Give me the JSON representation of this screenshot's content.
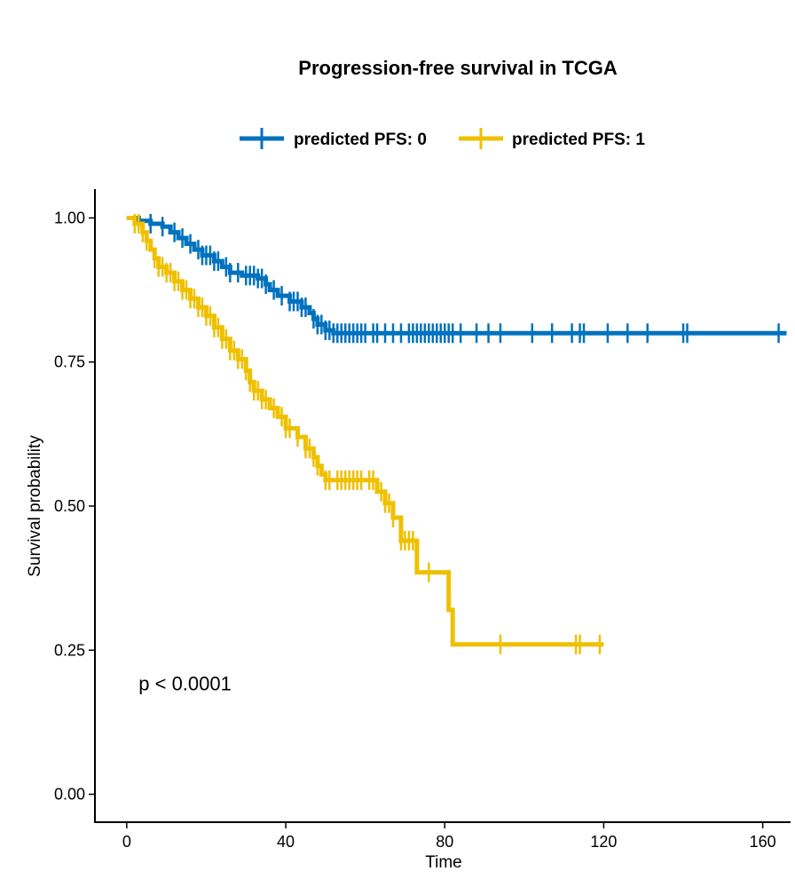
{
  "chart_data": {
    "type": "line",
    "subtype": "kaplan-meier step curve",
    "title": "Progression-free survival in TCGA",
    "xlabel": "Time",
    "ylabel": "Survival probability",
    "xlim": [
      -8,
      167
    ],
    "ylim": [
      -0.05,
      1.05
    ],
    "x_ticks": [
      0,
      40,
      80,
      120,
      160
    ],
    "y_ticks": [
      0.0,
      0.25,
      0.5,
      0.75,
      1.0
    ],
    "x_tick_labels": [
      "0",
      "40",
      "80",
      "120",
      "160"
    ],
    "y_tick_labels": [
      "0.00",
      "0.25",
      "0.50",
      "0.75",
      "1.00"
    ],
    "legend_position": "top",
    "annotation": {
      "text": "p < 0.0001",
      "x": 3,
      "y": 0.18
    },
    "series": [
      {
        "name": "predicted PFS: 0",
        "color": "#0072BD",
        "steps": [
          [
            0,
            1.0
          ],
          [
            3,
            0.995
          ],
          [
            6,
            0.99
          ],
          [
            9,
            0.985
          ],
          [
            11,
            0.975
          ],
          [
            13,
            0.965
          ],
          [
            15,
            0.955
          ],
          [
            17,
            0.945
          ],
          [
            19,
            0.935
          ],
          [
            22,
            0.925
          ],
          [
            24,
            0.915
          ],
          [
            26,
            0.905
          ],
          [
            29,
            0.9
          ],
          [
            33,
            0.895
          ],
          [
            35,
            0.885
          ],
          [
            36,
            0.875
          ],
          [
            38,
            0.865
          ],
          [
            41,
            0.855
          ],
          [
            44,
            0.845
          ],
          [
            46,
            0.835
          ],
          [
            47,
            0.825
          ],
          [
            48,
            0.815
          ],
          [
            50,
            0.805
          ],
          [
            52,
            0.8
          ],
          [
            166,
            0.8
          ]
        ],
        "censor_x": [
          6,
          9,
          12,
          14,
          16,
          18,
          19,
          20,
          21,
          22,
          23,
          25,
          26,
          28,
          30,
          31,
          32,
          33,
          34,
          35,
          37,
          39,
          41,
          42,
          43,
          44,
          45,
          47,
          48,
          49,
          50,
          51,
          52,
          53,
          54,
          55,
          56,
          57,
          58,
          59,
          60,
          62,
          63,
          65,
          67,
          69,
          71,
          72,
          73,
          74,
          75,
          76,
          77,
          78,
          79,
          80,
          81,
          82,
          84,
          88,
          91,
          94,
          102,
          107,
          112,
          114,
          115,
          121,
          126,
          131,
          140,
          141,
          164
        ]
      },
      {
        "name": "predicted PFS: 1",
        "color": "#EFC000",
        "steps": [
          [
            0,
            1.0
          ],
          [
            2,
            0.99
          ],
          [
            4,
            0.975
          ],
          [
            5,
            0.96
          ],
          [
            6,
            0.945
          ],
          [
            7,
            0.93
          ],
          [
            8,
            0.915
          ],
          [
            10,
            0.905
          ],
          [
            12,
            0.89
          ],
          [
            14,
            0.875
          ],
          [
            16,
            0.86
          ],
          [
            18,
            0.845
          ],
          [
            20,
            0.83
          ],
          [
            22,
            0.81
          ],
          [
            24,
            0.79
          ],
          [
            26,
            0.77
          ],
          [
            28,
            0.755
          ],
          [
            30,
            0.735
          ],
          [
            31,
            0.715
          ],
          [
            32,
            0.7
          ],
          [
            34,
            0.685
          ],
          [
            36,
            0.67
          ],
          [
            38,
            0.655
          ],
          [
            40,
            0.635
          ],
          [
            43,
            0.62
          ],
          [
            45,
            0.6
          ],
          [
            47,
            0.585
          ],
          [
            48,
            0.57
          ],
          [
            49,
            0.555
          ],
          [
            50,
            0.545
          ],
          [
            63,
            0.525
          ],
          [
            65,
            0.505
          ],
          [
            67,
            0.48
          ],
          [
            69,
            0.44
          ],
          [
            73,
            0.385
          ],
          [
            81,
            0.32
          ],
          [
            82,
            0.26
          ],
          [
            120,
            0.26
          ]
        ],
        "censor_x": [
          2,
          3,
          4,
          5,
          7,
          8,
          9,
          10,
          11,
          12,
          13,
          14,
          15,
          16,
          17,
          18,
          19,
          20,
          21,
          22,
          23,
          24,
          25,
          26,
          27,
          28,
          29,
          30,
          31,
          32,
          33,
          34,
          35,
          37,
          39,
          40,
          41,
          43,
          45,
          46,
          47,
          48,
          50,
          51,
          53,
          54,
          55,
          56,
          57,
          58,
          59,
          61,
          62,
          64,
          65,
          66,
          67,
          69,
          70,
          71,
          72,
          76,
          94,
          113,
          114,
          119
        ]
      }
    ]
  }
}
